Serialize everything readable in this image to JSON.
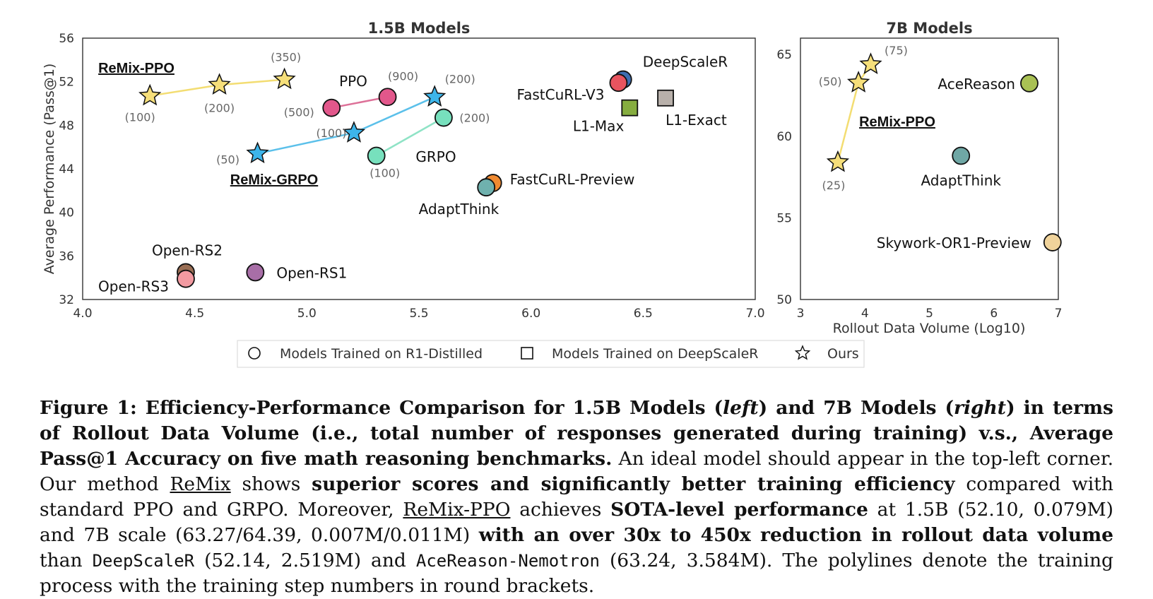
{
  "chart_data": [
    {
      "type": "scatter",
      "title": "1.5B Models",
      "ylabel": "Average Performance (Pass@1)",
      "xlim": [
        4.0,
        7.0
      ],
      "ylim": [
        32,
        56
      ],
      "xticks": [
        "4.0",
        "4.5",
        "5.0",
        "5.5",
        "6.0",
        "6.5",
        "7.0"
      ],
      "yticks": [
        "32",
        "36",
        "40",
        "44",
        "48",
        "52",
        "56"
      ],
      "points": [
        {
          "label": "DeepScaleR",
          "x": 6.41,
          "y": 52.2,
          "marker": "circle",
          "color": "#3e6db0"
        },
        {
          "label": "FastCuRL-V3",
          "x": 6.39,
          "y": 51.9,
          "marker": "circle",
          "color": "#e7545f"
        },
        {
          "label": "L1-Max",
          "x": 6.44,
          "y": 49.6,
          "marker": "square",
          "color": "#86ad3f"
        },
        {
          "label": "L1-Exact",
          "x": 6.6,
          "y": 50.5,
          "marker": "square",
          "color": "#b8b0aa"
        },
        {
          "label": "FastCuRL-Preview",
          "x": 5.83,
          "y": 42.7,
          "marker": "circle",
          "color": "#f08a31"
        },
        {
          "label": "AdaptThink",
          "x": 5.8,
          "y": 42.3,
          "marker": "circle",
          "color": "#6fb1ae"
        },
        {
          "label": "Open-RS2",
          "x": 4.46,
          "y": 34.5,
          "marker": "circle",
          "color": "#9a6f55"
        },
        {
          "label": "Open-RS3",
          "x": 4.46,
          "y": 33.9,
          "marker": "circle",
          "color": "#f29aa1"
        },
        {
          "label": "Open-RS1",
          "x": 4.77,
          "y": 34.5,
          "marker": "circle",
          "color": "#a86ea7"
        }
      ],
      "series": [
        {
          "name": "PPO",
          "marker": "circle",
          "color": "#e2578b",
          "line_color": "#dd7098",
          "points": [
            {
              "x": 5.11,
              "y": 49.6,
              "step": "(500)"
            },
            {
              "x": 5.36,
              "y": 50.6,
              "step": "(900)"
            }
          ]
        },
        {
          "name": "GRPO",
          "marker": "circle",
          "color": "#77e0bd",
          "line_color": "#8fe3c6",
          "points": [
            {
              "x": 5.31,
              "y": 45.2,
              "step": "(100)"
            },
            {
              "x": 5.61,
              "y": 48.7,
              "step": "(200)"
            }
          ]
        },
        {
          "name": "ReMix-GRPO",
          "marker": "star",
          "color": "#3db5ea",
          "line_color": "#5bc0ea",
          "points": [
            {
              "x": 4.78,
              "y": 45.4,
              "step": "(50)"
            },
            {
              "x": 5.21,
              "y": 47.3,
              "step": "(100)"
            },
            {
              "x": 5.57,
              "y": 50.6,
              "step": "(200)"
            }
          ]
        },
        {
          "name": "ReMix-PPO",
          "marker": "star",
          "color": "#f6df7a",
          "line_color": "#f3dd72",
          "points": [
            {
              "x": 4.3,
              "y": 50.7,
              "step": "(100)"
            },
            {
              "x": 4.61,
              "y": 51.7,
              "step": "(200)"
            },
            {
              "x": 4.9,
              "y": 52.2,
              "step": "(350)"
            }
          ]
        }
      ]
    },
    {
      "type": "scatter",
      "title": "7B Models",
      "xlabel": "Rollout Data Volume (Log10)",
      "xlim": [
        3,
        7
      ],
      "ylim": [
        50,
        66
      ],
      "xticks": [
        "3",
        "4",
        "5",
        "6",
        "7"
      ],
      "yticks": [
        "50",
        "55",
        "60",
        "65"
      ],
      "points": [
        {
          "label": "AceReason",
          "x": 6.55,
          "y": 63.24,
          "marker": "circle",
          "color": "#a9c154"
        },
        {
          "label": "AdaptThink",
          "x": 5.49,
          "y": 58.8,
          "marker": "circle",
          "color": "#6fa7a5"
        },
        {
          "label": "Skywork-OR1-Preview",
          "x": 6.91,
          "y": 53.5,
          "marker": "circle",
          "color": "#f0d39b"
        }
      ],
      "series": [
        {
          "name": "ReMix-PPO",
          "marker": "star",
          "color": "#f6df7a",
          "line_color": "#f3dd72",
          "points": [
            {
              "x": 3.58,
              "y": 58.4,
              "step": "(25)"
            },
            {
              "x": 3.9,
              "y": 63.27,
              "step": "(50)"
            },
            {
              "x": 4.09,
              "y": 64.39,
              "step": "(75)"
            }
          ]
        }
      ]
    }
  ],
  "legend": {
    "items": [
      {
        "marker": "circle",
        "label": "Models Trained on R1-Distilled"
      },
      {
        "marker": "square",
        "label": "Models Trained on DeepScaleR"
      },
      {
        "marker": "star",
        "label": "Ours"
      }
    ]
  },
  "caption": {
    "segments": [
      {
        "text": "Figure 1: Efficiency-Performance Comparison for 1.5B Models (",
        "style": "b"
      },
      {
        "text": "left",
        "style": "b i"
      },
      {
        "text": ") and 7B Models (",
        "style": "b"
      },
      {
        "text": "right",
        "style": "b i"
      },
      {
        "text": ") in terms of Rollout Data Volume (i.e., total number of responses generated during training) v.s., Average Pass@1 Accuracy on five math reasoning benchmarks.",
        "style": "b"
      },
      {
        "text": " An ideal model should appear in the top-left corner. Our method ",
        "style": ""
      },
      {
        "text": "ReMix",
        "style": "u"
      },
      {
        "text": " shows ",
        "style": ""
      },
      {
        "text": "superior scores and significantly better training efficiency",
        "style": "b"
      },
      {
        "text": " compared with standard PPO and GRPO. Moreover, ",
        "style": ""
      },
      {
        "text": "ReMix-PPO",
        "style": "u"
      },
      {
        "text": " achieves ",
        "style": ""
      },
      {
        "text": "SOTA-level performance",
        "style": "b"
      },
      {
        "text": " at 1.5B (52.10, 0.079M) and 7B scale (63.27/64.39, 0.007M/0.011M) ",
        "style": ""
      },
      {
        "text": "with an over 30x to 450x reduction in rollout data volume",
        "style": "b"
      },
      {
        "text": " than ",
        "style": ""
      },
      {
        "text": "DeepScaleR",
        "style": "m"
      },
      {
        "text": " (52.14, 2.519M) and ",
        "style": ""
      },
      {
        "text": "AceReason-Nemotron",
        "style": "m"
      },
      {
        "text": " (63.24, 3.584M). The polylines denote the training process with the training step numbers in round brackets.",
        "style": ""
      }
    ]
  }
}
